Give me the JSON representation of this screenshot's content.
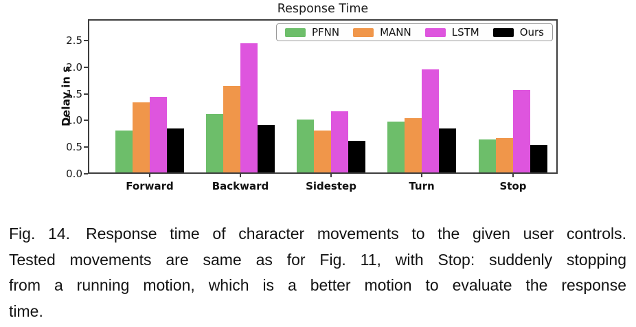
{
  "figure": {
    "caption_lines": [
      "Fig. 14. Response time of character movements to the given user controls.",
      "Tested movements are same as for Fig. 11, with Stop: suddenly stopping",
      "from a running motion, which is a better motion to evaluate the response",
      "time."
    ]
  },
  "chart_data": {
    "type": "bar",
    "title": "Response Time",
    "xlabel": "",
    "ylabel": "Delay in s",
    "categories": [
      "Forward",
      "Backward",
      "Sidestep",
      "Turn",
      "Stop"
    ],
    "series": [
      {
        "name": "PFNN",
        "color": "#6dbe6a",
        "values": [
          0.79,
          1.1,
          0.99,
          0.96,
          0.62
        ]
      },
      {
        "name": "MANN",
        "color": "#f0964a",
        "values": [
          1.32,
          1.62,
          0.79,
          1.02,
          0.65
        ]
      },
      {
        "name": "LSTM",
        "color": "#de55de",
        "values": [
          1.42,
          2.42,
          1.15,
          1.93,
          1.55
        ]
      },
      {
        "name": "Ours",
        "color": "#000000",
        "values": [
          0.83,
          0.89,
          0.59,
          0.83,
          0.52
        ]
      }
    ],
    "yticks": [
      0.0,
      0.5,
      1.0,
      1.5,
      2.0,
      2.5
    ],
    "ylim": [
      0,
      2.9
    ],
    "grid": false,
    "legend_position": "upper right"
  }
}
